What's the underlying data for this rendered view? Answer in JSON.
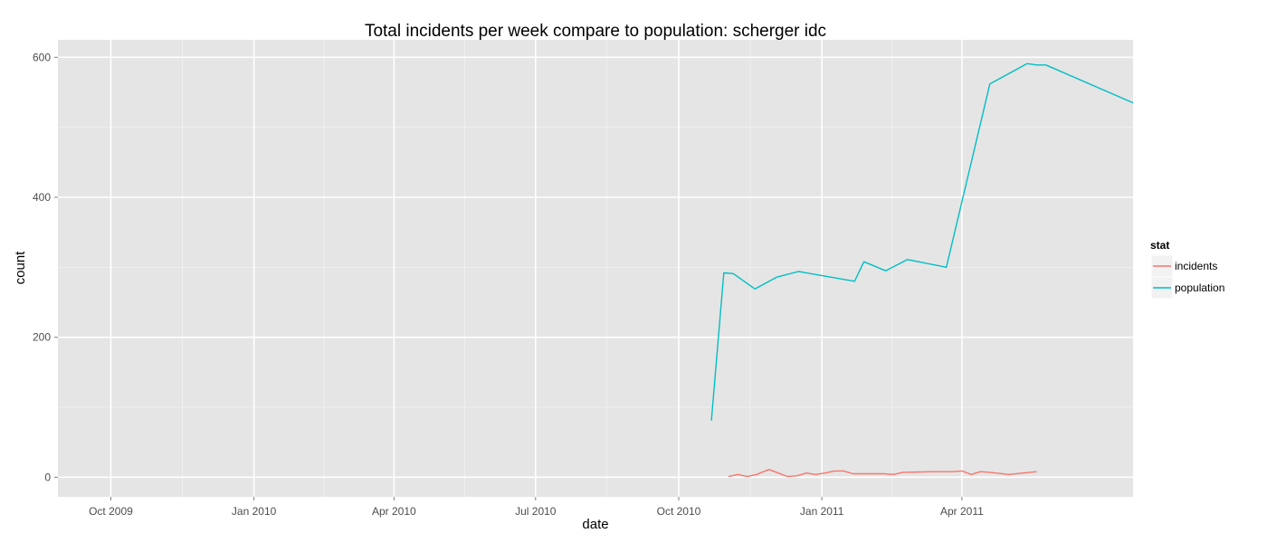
{
  "chart_data": {
    "type": "line",
    "title": "Total incidents per week compare to population: scherger idc",
    "xlabel": "date",
    "ylabel": "count",
    "x_range": [
      "2009-08-28",
      "2011-07-20"
    ],
    "ylim": [
      -28,
      625
    ],
    "y_ticks": [
      0,
      200,
      400,
      600
    ],
    "x_ticks": [
      {
        "date": "2009-10-01",
        "label": "Oct 2009"
      },
      {
        "date": "2010-01-01",
        "label": "Jan 2010"
      },
      {
        "date": "2010-04-01",
        "label": "Apr 2010"
      },
      {
        "date": "2010-07-01",
        "label": "Jul 2010"
      },
      {
        "date": "2010-10-01",
        "label": "Oct 2010"
      },
      {
        "date": "2011-01-01",
        "label": "Jan 2011"
      },
      {
        "date": "2011-04-01",
        "label": "Apr 2011"
      }
    ],
    "grid": true,
    "legend": {
      "title": "stat",
      "position": "right"
    },
    "series": [
      {
        "name": "incidents",
        "color": "#F8766D",
        "points": [
          [
            "2010-11-02",
            1
          ],
          [
            "2010-11-08",
            4
          ],
          [
            "2010-11-14",
            1
          ],
          [
            "2010-11-20",
            4
          ],
          [
            "2010-11-28",
            11
          ],
          [
            "2010-12-04",
            6
          ],
          [
            "2010-12-10",
            1
          ],
          [
            "2010-12-16",
            2
          ],
          [
            "2010-12-22",
            6
          ],
          [
            "2010-12-28",
            4
          ],
          [
            "2011-01-03",
            6
          ],
          [
            "2011-01-09",
            9
          ],
          [
            "2011-01-15",
            9
          ],
          [
            "2011-01-21",
            5
          ],
          [
            "2011-01-27",
            5
          ],
          [
            "2011-02-10",
            5
          ],
          [
            "2011-02-16",
            4
          ],
          [
            "2011-02-22",
            7
          ],
          [
            "2011-03-14",
            8
          ],
          [
            "2011-03-20",
            8
          ],
          [
            "2011-03-26",
            8
          ],
          [
            "2011-04-01",
            9
          ],
          [
            "2011-04-07",
            4
          ],
          [
            "2011-04-13",
            8
          ],
          [
            "2011-04-19",
            7
          ],
          [
            "2011-05-01",
            4
          ],
          [
            "2011-05-19",
            8
          ]
        ]
      },
      {
        "name": "population",
        "color": "#00BFC4",
        "points": [
          [
            "2010-10-22",
            81
          ],
          [
            "2010-10-30",
            292
          ],
          [
            "2010-11-05",
            291
          ],
          [
            "2010-11-19",
            269
          ],
          [
            "2010-12-03",
            286
          ],
          [
            "2010-12-17",
            294
          ],
          [
            "2011-01-22",
            280
          ],
          [
            "2011-01-28",
            308
          ],
          [
            "2011-02-11",
            295
          ],
          [
            "2011-02-25",
            311
          ],
          [
            "2011-03-22",
            300
          ],
          [
            "2011-04-19",
            562
          ],
          [
            "2011-05-13",
            591
          ],
          [
            "2011-05-19",
            589
          ],
          [
            "2011-05-25",
            589
          ],
          [
            "2011-07-20",
            535
          ]
        ]
      }
    ]
  }
}
